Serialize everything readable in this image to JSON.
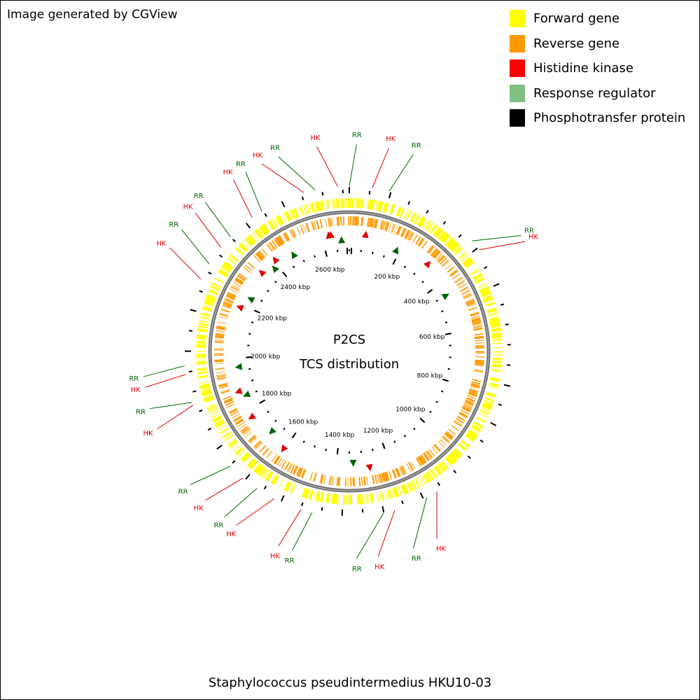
{
  "credit": "Image generated by CGView",
  "legend": [
    {
      "label": "Forward gene",
      "color": "#ffff00"
    },
    {
      "label": "Reverse gene",
      "color": "#ff9900"
    },
    {
      "label": "Histidine kinase",
      "color": "#ff0000"
    },
    {
      "label": "Response regulator",
      "color": "#80c080"
    },
    {
      "label": "Phosphotransfer protein",
      "color": "#000000"
    }
  ],
  "map": {
    "title": "P2CS",
    "subtitle": "TCS distribution",
    "genome_length_kbp": 2700,
    "tick_labels": [
      "200 kbp",
      "400 kbp",
      "600 kbp",
      "800 kbp",
      "1000 kbp",
      "1200 kbp",
      "1400 kbp",
      "1600 kbp",
      "1800 kbp",
      "2000 kbp",
      "2200 kbp",
      "2400 kbp",
      "2600 kbp"
    ],
    "tick_positions_kbp": [
      200,
      400,
      600,
      800,
      1000,
      1200,
      1400,
      1600,
      1800,
      2000,
      2200,
      2400,
      2600
    ],
    "label_colors": {
      "HK": "#e00000",
      "RR": "#006400"
    },
    "callouts": [
      {
        "text": "HK",
        "kind": "HK"
      },
      {
        "text": "RR",
        "kind": "RR"
      },
      {
        "text": "HK",
        "kind": "HK"
      },
      {
        "text": "RR",
        "kind": "RR"
      },
      {
        "text": "HK",
        "kind": "HK"
      },
      {
        "text": "RR",
        "kind": "RR"
      },
      {
        "text": "RR",
        "kind": "RR"
      },
      {
        "text": "HK",
        "kind": "HK"
      },
      {
        "text": "HK",
        "kind": "HK"
      },
      {
        "text": "RR",
        "kind": "RR"
      },
      {
        "text": "HK",
        "kind": "HK"
      },
      {
        "text": "RR",
        "kind": "RR"
      },
      {
        "text": "RR",
        "kind": "RR"
      },
      {
        "text": "HK",
        "kind": "HK"
      },
      {
        "text": "HK",
        "kind": "HK"
      },
      {
        "text": "RR",
        "kind": "RR"
      },
      {
        "text": "HK",
        "kind": "HK"
      },
      {
        "text": "RR",
        "kind": "RR"
      },
      {
        "text": "RR",
        "kind": "RR"
      },
      {
        "text": "HK",
        "kind": "HK"
      },
      {
        "text": "HK",
        "kind": "HK"
      },
      {
        "text": "RR",
        "kind": "RR"
      },
      {
        "text": "HK",
        "kind": "HK"
      },
      {
        "text": "RR",
        "kind": "RR"
      },
      {
        "text": "HK",
        "kind": "HK"
      },
      {
        "text": "RR",
        "kind": "RR"
      },
      {
        "text": "HK",
        "kind": "HK"
      },
      {
        "text": "RR",
        "kind": "RR"
      }
    ]
  },
  "organism": "Staphylococcus pseudintermedius HKU10-03"
}
